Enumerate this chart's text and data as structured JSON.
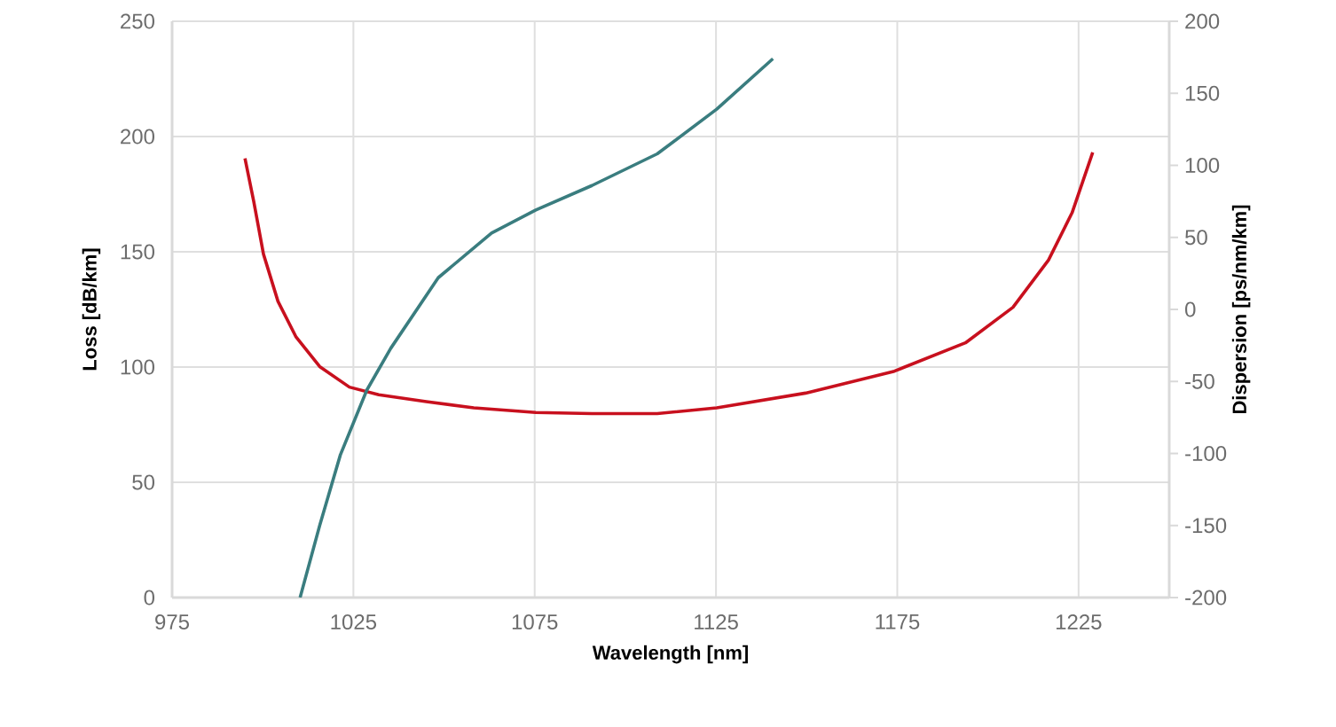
{
  "chart_data": {
    "type": "line",
    "xlabel": "Wavelength [nm]",
    "ylabel": "Loss [dB/km]",
    "y2label": "Dispersion [ps/nm/km]",
    "xlim": [
      975,
      1250
    ],
    "ylim": [
      0,
      250
    ],
    "y2lim": [
      -200,
      200
    ],
    "xticks": [
      975,
      1025,
      1075,
      1125,
      1175,
      1225
    ],
    "yticks": [
      0,
      50,
      100,
      150,
      200,
      250
    ],
    "y2ticks": [
      -200,
      -150,
      -100,
      -50,
      0,
      50,
      100,
      150,
      200
    ],
    "grid": true,
    "series": [
      {
        "color": "#c8101e",
        "axis": "y",
        "x": [
          995.1,
          997.5,
          1000.2,
          1004.2,
          1009.2,
          1015.7,
          1023.9,
          1032,
          1045.1,
          1058.2,
          1075.3,
          1090.8,
          1108.8,
          1125.2,
          1149.7,
          1174.2,
          1193.8,
          1206.9,
          1216.7,
          1223.2,
          1228.9
        ],
        "values": [
          190.5,
          172,
          149,
          128.5,
          113,
          100.2,
          91.3,
          88,
          85,
          82.3,
          80.3,
          79.8,
          79.8,
          82.3,
          88.7,
          98.2,
          110.5,
          125.9,
          146.4,
          166.9,
          193.1
        ]
      },
      {
        "color": "#3a7d7f",
        "axis": "y2",
        "x": [
          1010.3,
          1015.7,
          1021.4,
          1028.7,
          1035.3,
          1048.4,
          1063.1,
          1075.3,
          1090.8,
          1108.8,
          1125.2,
          1140.7
        ],
        "values": [
          -200,
          -150,
          -101,
          -56,
          -27,
          22,
          53,
          69,
          86,
          108,
          139,
          174
        ]
      }
    ]
  }
}
